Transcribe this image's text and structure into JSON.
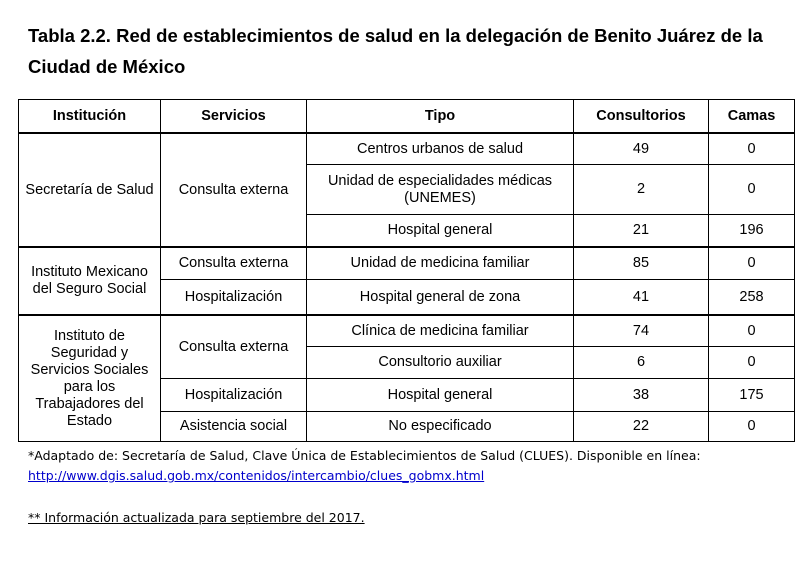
{
  "title": "Tabla 2.2. Red de establecimientos de salud en la delegación de Benito Juárez de la Ciudad de México",
  "headers": [
    "Institución",
    "Servicios",
    "Tipo",
    "Consultorios",
    "Camas"
  ],
  "groups": {
    "ssa": {
      "institution": "Secretaría de Salud",
      "service": "Consulta externa",
      "rows": [
        {
          "tipo": "Centros urbanos de salud",
          "consultorios": "49",
          "camas": "0"
        },
        {
          "tipo": "Unidad de especialidades médicas (UNEMES)",
          "consultorios": "2",
          "camas": "0"
        },
        {
          "tipo": "Hospital general",
          "consultorios": "21",
          "camas": "196"
        }
      ]
    },
    "imss": {
      "institution": "Instituto Mexicano del Seguro Social",
      "rows": [
        {
          "servicio": "Consulta externa",
          "tipo": "Unidad de medicina familiar",
          "consultorios": "85",
          "camas": "0"
        },
        {
          "servicio": "Hospitalización",
          "tipo": "Hospital general de zona",
          "consultorios": "41",
          "camas": "258"
        }
      ]
    },
    "issste": {
      "institution": "Instituto de Seguridad y Servicios Sociales para los Trabajadores del Estado",
      "service_ce": "Consulta externa",
      "rows": [
        {
          "tipo": "Clínica de medicina familiar",
          "consultorios": "74",
          "camas": "0"
        },
        {
          "tipo": "Consultorio auxiliar",
          "consultorios": "6",
          "camas": "0"
        },
        {
          "servicio": "Hospitalización",
          "tipo": "Hospital general",
          "consultorios": "38",
          "camas": "175"
        },
        {
          "servicio": "Asistencia social",
          "tipo": "No especificado",
          "consultorios": "22",
          "camas": "0"
        }
      ]
    }
  },
  "footnotes": {
    "source_text": "*Adaptado de: Secretaría de Salud, Clave Única de Establecimientos de Salud (CLUES). Disponible en línea:",
    "source_link": "http://www.dgis.salud.gob.mx/contenidos/intercambio/clues_gobmx.html",
    "update_note": "** Información actualizada para septiembre del 2017."
  }
}
